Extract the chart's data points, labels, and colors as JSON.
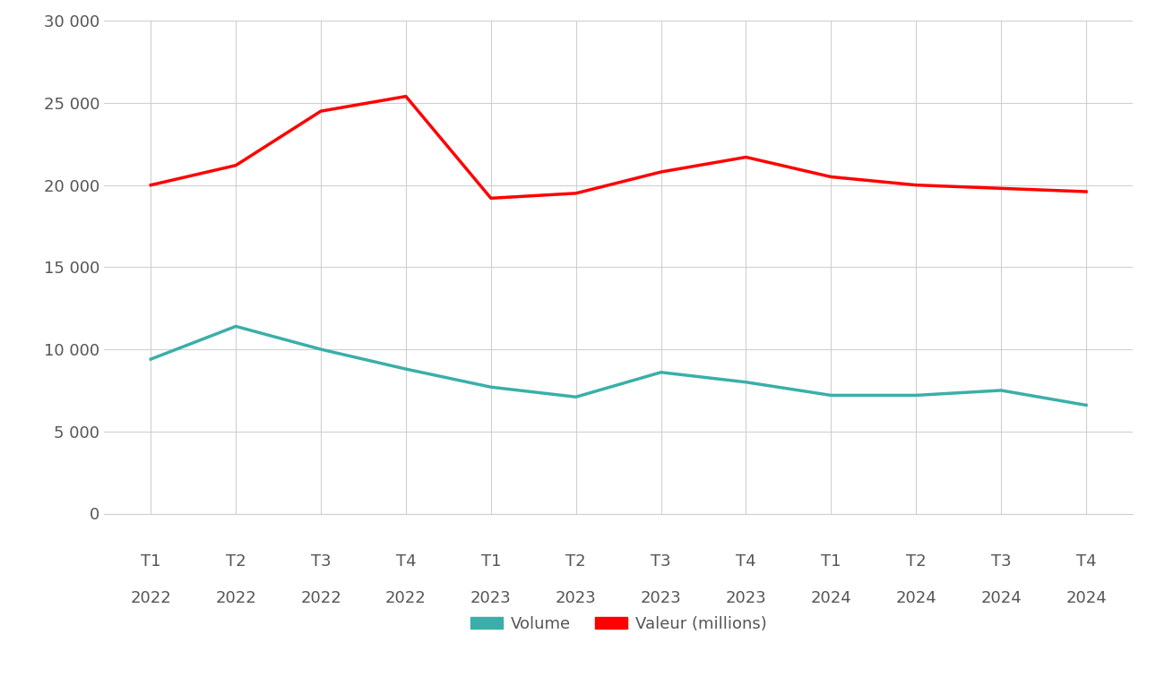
{
  "x_labels_top": [
    "T1",
    "T2",
    "T3",
    "T4",
    "T1",
    "T2",
    "T3",
    "T4",
    "T1",
    "T2",
    "T3",
    "T4"
  ],
  "x_labels_bottom": [
    "2022",
    "2022",
    "2022",
    "2022",
    "2023",
    "2023",
    "2023",
    "2023",
    "2024",
    "2024",
    "2024",
    "2024"
  ],
  "volume": [
    9400,
    11400,
    10000,
    8800,
    7700,
    7100,
    8600,
    8000,
    7200,
    7200,
    7500,
    6600
  ],
  "valeur": [
    20000,
    21200,
    24500,
    25400,
    19200,
    19500,
    20800,
    21700,
    20500,
    20000,
    19800,
    19600
  ],
  "volume_color": "#3aafa9",
  "valeur_color": "#ff0000",
  "volume_label": "Volume",
  "valeur_label": "Valeur (millions)",
  "ylim": [
    0,
    30000
  ],
  "yticks": [
    0,
    5000,
    10000,
    15000,
    20000,
    25000,
    30000
  ],
  "background_color": "#ffffff",
  "plot_background": "#ffffff",
  "grid_color": "#d0d0d0",
  "line_width": 2.5,
  "tick_label_color": "#555555",
  "tick_label_fontsize": 13,
  "legend_fontsize": 13,
  "fig_width": 12.9,
  "fig_height": 7.75,
  "dpi": 100
}
